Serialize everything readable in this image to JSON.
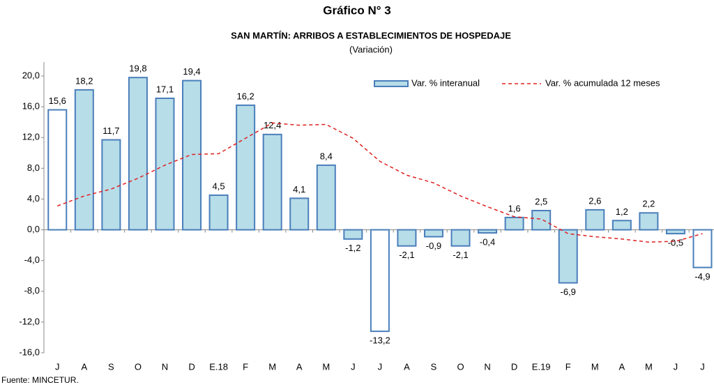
{
  "chart_data": {
    "type": "bar",
    "title": "Gráfico N° 3",
    "subtitle": "SAN MARTÍN: ARRIBOS A ESTABLECIMIENTOS DE HOSPEDAJE",
    "unit_note": "(Variación)",
    "source": "Fuente: MINCETUR.",
    "categories": [
      "J",
      "A",
      "S",
      "O",
      "N",
      "D",
      "E.18",
      "F",
      "M",
      "A",
      "M",
      "J",
      "J",
      "A",
      "S",
      "O",
      "N",
      "D",
      "E.19",
      "F",
      "M",
      "A",
      "M",
      "J",
      "J"
    ],
    "series": [
      {
        "name": "Var. % interanual",
        "type": "bar",
        "color": "#b7dde8",
        "edge_color": "#4a7ebb",
        "values": [
          15.6,
          18.2,
          11.7,
          19.8,
          17.1,
          19.4,
          4.5,
          16.2,
          12.4,
          4.1,
          8.4,
          -1.2,
          -13.2,
          -2.1,
          -0.9,
          -2.1,
          -0.4,
          1.6,
          2.5,
          -6.9,
          2.6,
          1.2,
          2.2,
          -0.5,
          -4.9
        ],
        "value_labels": [
          "15,6",
          "18,2",
          "11,7",
          "19,8",
          "17,1",
          "19,4",
          "4,5",
          "16,2",
          "12,4",
          "4,1",
          "8,4",
          "-1,2",
          "-13,2",
          "-2,1",
          "-0,9",
          "-2,1",
          "-0,4",
          "1,6",
          "2,5",
          "-6,9",
          "2,6",
          "1,2",
          "2,2",
          "-0,5",
          "-4,9"
        ],
        "colors": [
          "#ffffff",
          "#b7dde8",
          "#b7dde8",
          "#b7dde8",
          "#b7dde8",
          "#b7dde8",
          "#b7dde8",
          "#b7dde8",
          "#b7dde8",
          "#b7dde8",
          "#b7dde8",
          "#b7dde8",
          "#ffffff",
          "#b7dde8",
          "#b7dde8",
          "#b7dde8",
          "#b7dde8",
          "#b7dde8",
          "#b7dde8",
          "#b7dde8",
          "#b7dde8",
          "#b7dde8",
          "#b7dde8",
          "#b7dde8",
          "#ffffff"
        ]
      },
      {
        "name": "Var. % acumulada 12 meses",
        "type": "line",
        "color": "#e02020",
        "dashed": true,
        "values": [
          3.1,
          4.4,
          5.3,
          6.7,
          8.4,
          9.8,
          9.9,
          11.9,
          13.9,
          13.6,
          13.7,
          11.9,
          8.9,
          7.1,
          6.1,
          4.4,
          3.0,
          1.7,
          1.4,
          -0.5,
          -0.9,
          -1.2,
          -1.6,
          -1.5,
          -0.5
        ]
      }
    ],
    "ylim": [
      -16,
      20
    ],
    "yticks": [
      {
        "value": -16,
        "label": "-16,0"
      },
      {
        "value": -12,
        "label": "-12,0"
      },
      {
        "value": -8,
        "label": "-8,0"
      },
      {
        "value": -4,
        "label": "-4,0"
      },
      {
        "value": 0,
        "label": "0,0"
      },
      {
        "value": 4,
        "label": "4,0"
      },
      {
        "value": 8,
        "label": "8,0"
      },
      {
        "value": 12,
        "label": "12,0"
      },
      {
        "value": 16,
        "label": "16,0"
      },
      {
        "value": 20,
        "label": "20,0"
      }
    ],
    "grid": false,
    "legend": "top-right"
  }
}
